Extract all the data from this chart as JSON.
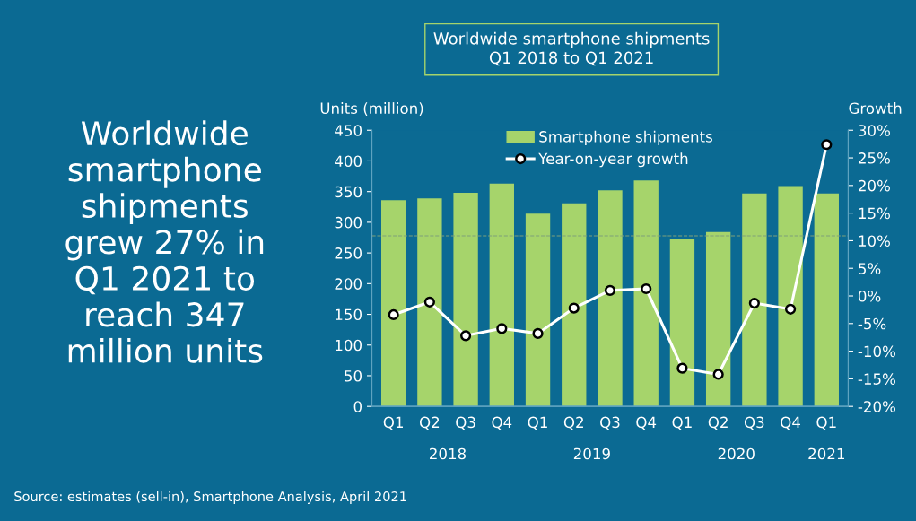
{
  "chart_data": {
    "type": "bar",
    "title": "Worldwide smartphone shipments\nQ1 2018 to Q1 2021",
    "categories": [
      "Q1",
      "Q2",
      "Q3",
      "Q4",
      "Q1",
      "Q2",
      "Q3",
      "Q4",
      "Q1",
      "Q2",
      "Q3",
      "Q4",
      "Q1"
    ],
    "series": [
      {
        "name": "Smartphone shipments",
        "color": "#a6d46b",
        "values": [
          336,
          339,
          348,
          363,
          314,
          331,
          352,
          368,
          272,
          284,
          347,
          359,
          347
        ]
      },
      {
        "name": "Year-on-year growth",
        "type": "line",
        "axis": "y2",
        "color": "#ffffff",
        "marker": "circle",
        "values": [
          -3.4,
          -1.1,
          -7.2,
          -5.9,
          -6.8,
          -2.2,
          1.0,
          1.3,
          -13.1,
          -14.2,
          -1.3,
          -2.4,
          27.4
        ]
      }
    ],
    "ylabel": "Units (million)",
    "y2label": "Growth",
    "ylim": [
      0,
      450
    ],
    "yticks": [
      0,
      50,
      100,
      150,
      200,
      250,
      300,
      350,
      400,
      450
    ],
    "y2lim": [
      -20,
      30
    ],
    "y2ticks": [
      {
        "value": -20,
        "label": "-20%"
      },
      {
        "value": -15,
        "label": "-15%"
      },
      {
        "value": -10,
        "label": "-10%"
      },
      {
        "value": -5,
        "label": "-5%"
      },
      {
        "value": 0,
        "label": "0%"
      },
      {
        "value": 5,
        "label": "5%"
      },
      {
        "value": 10,
        "label": "10%"
      },
      {
        "value": 15,
        "label": "15%"
      },
      {
        "value": 20,
        "label": "20%"
      },
      {
        "value": 25,
        "label": "25%"
      },
      {
        "value": 30,
        "label": "30%"
      }
    ],
    "ref_lines": [
      {
        "axis": "y",
        "value": 278,
        "color": "#7fa07a",
        "line_style": "dashed"
      }
    ],
    "legend": "top",
    "grid": false,
    "annotations": [
      "2018",
      "2019",
      "2020",
      "2021",
      "Worldwide\nsmartphone\nshipments\ngrew 27% in\nQ1 2021 to\nreach 347\nmillion units",
      "Source: estimates (sell-in), Smartphone Analysis, April 2021"
    ]
  }
}
